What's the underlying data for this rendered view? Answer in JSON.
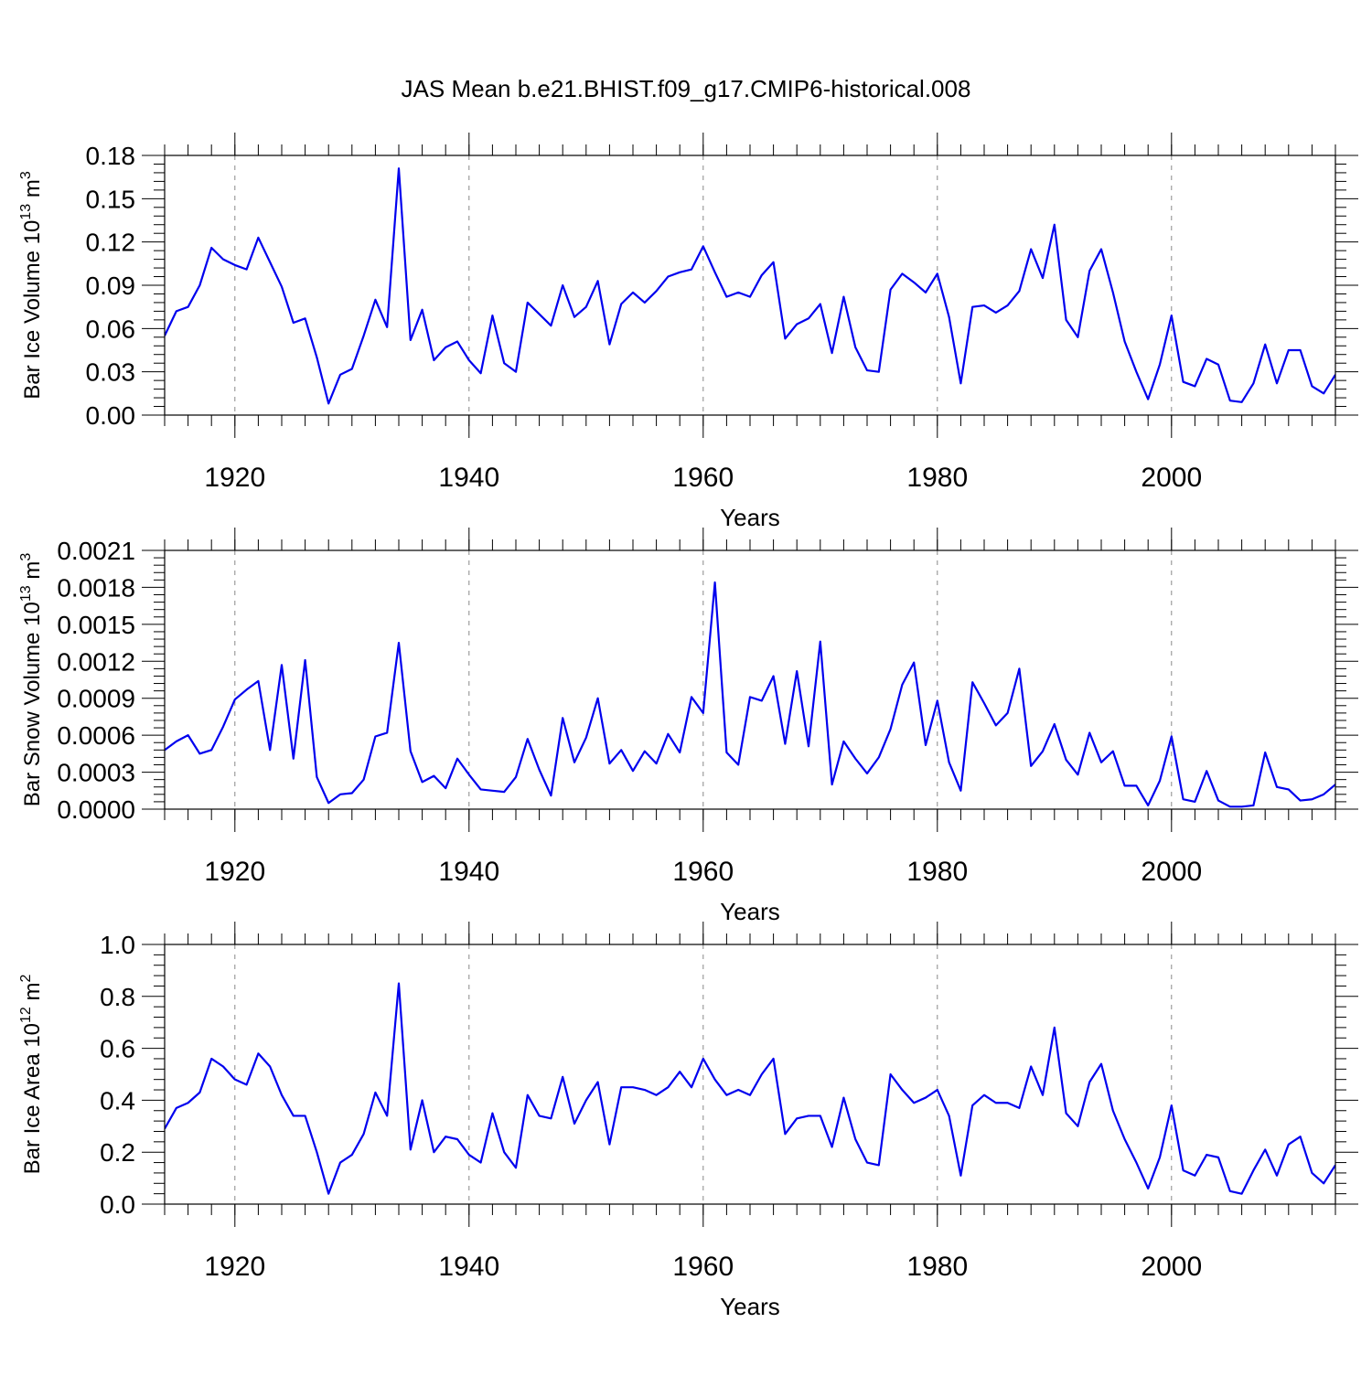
{
  "title": "JAS Mean b.e21.BHIST.f09_g17.CMIP6-historical.008",
  "colors": {
    "series": "#0000ee",
    "axes": "#000000",
    "grid": "#888888"
  },
  "chart_data": [
    {
      "type": "line",
      "name": "ice-volume",
      "ylabel": {
        "prefix": "Bar Ice Volume 10",
        "exp": "13",
        "unit": " m",
        "unit_exp": "3"
      },
      "xlabel": "Years",
      "xlim": [
        1914,
        2014
      ],
      "ylim": [
        0,
        0.18
      ],
      "yticks": [
        0,
        0.03,
        0.06,
        0.09,
        0.12,
        0.15,
        0.18
      ],
      "ytick_labels": [
        "0.00",
        "0.03",
        "0.06",
        "0.09",
        "0.12",
        "0.15",
        "0.18"
      ],
      "xticks": [
        1920,
        1940,
        1960,
        1980,
        2000
      ],
      "xtick_labels": [
        "1920",
        "1940",
        "1960",
        "1980",
        "2000"
      ],
      "grid": "vertical dashed at major x ticks",
      "series": [
        {
          "name": "Bar Ice Volume",
          "x_start": 1914,
          "values": [
            0.055,
            0.072,
            0.075,
            0.09,
            0.116,
            0.108,
            0.104,
            0.101,
            0.123,
            0.106,
            0.089,
            0.064,
            0.067,
            0.04,
            0.008,
            0.028,
            0.032,
            0.055,
            0.08,
            0.061,
            0.171,
            0.052,
            0.073,
            0.038,
            0.047,
            0.051,
            0.038,
            0.029,
            0.069,
            0.036,
            0.03,
            0.078,
            0.07,
            0.062,
            0.09,
            0.068,
            0.075,
            0.093,
            0.049,
            0.077,
            0.085,
            0.078,
            0.086,
            0.096,
            0.099,
            0.101,
            0.117,
            0.099,
            0.082,
            0.085,
            0.082,
            0.097,
            0.106,
            0.053,
            0.063,
            0.067,
            0.077,
            0.043,
            0.082,
            0.047,
            0.031,
            0.03,
            0.087,
            0.098,
            0.092,
            0.085,
            0.098,
            0.068,
            0.022,
            0.075,
            0.076,
            0.071,
            0.076,
            0.086,
            0.115,
            0.095,
            0.132,
            0.066,
            0.054,
            0.1,
            0.115,
            0.085,
            0.051,
            0.03,
            0.011,
            0.035,
            0.069,
            0.023,
            0.02,
            0.039,
            0.035,
            0.01,
            0.009,
            0.022,
            0.049,
            0.022,
            0.045,
            0.045,
            0.02,
            0.015,
            0.028
          ]
        }
      ]
    },
    {
      "type": "line",
      "name": "snow-volume",
      "ylabel": {
        "prefix": "Bar Snow Volume 10",
        "exp": "13",
        "unit": " m",
        "unit_exp": "3"
      },
      "xlabel": "Years",
      "xlim": [
        1914,
        2014
      ],
      "ylim": [
        0,
        0.0021
      ],
      "yticks": [
        0,
        0.0003,
        0.0006,
        0.0009,
        0.0012,
        0.0015,
        0.0018,
        0.0021
      ],
      "ytick_labels": [
        "0.0000",
        "0.0003",
        "0.0006",
        "0.0009",
        "0.0012",
        "0.0015",
        "0.0018",
        "0.0021"
      ],
      "xticks": [
        1920,
        1940,
        1960,
        1980,
        2000
      ],
      "xtick_labels": [
        "1920",
        "1940",
        "1960",
        "1980",
        "2000"
      ],
      "grid": "vertical dashed at major x ticks",
      "series": [
        {
          "name": "Bar Snow Volume",
          "x_start": 1914,
          "values": [
            0.00048,
            0.00055,
            0.0006,
            0.00045,
            0.00048,
            0.00067,
            0.00089,
            0.00097,
            0.00104,
            0.00048,
            0.00117,
            0.00041,
            0.00121,
            0.00026,
            5e-05,
            0.00012,
            0.00013,
            0.00024,
            0.00059,
            0.00062,
            0.00135,
            0.00047,
            0.00022,
            0.00027,
            0.00017,
            0.00041,
            0.00028,
            0.00016,
            0.00015,
            0.00014,
            0.00026,
            0.00057,
            0.00032,
            0.00011,
            0.00074,
            0.00038,
            0.00058,
            0.0009,
            0.00037,
            0.00048,
            0.00031,
            0.00047,
            0.00037,
            0.00061,
            0.00046,
            0.00091,
            0.00078,
            0.00184,
            0.00046,
            0.00036,
            0.00091,
            0.00088,
            0.00108,
            0.00053,
            0.00112,
            0.00051,
            0.00136,
            0.0002,
            0.00055,
            0.00041,
            0.00029,
            0.00042,
            0.00065,
            0.00101,
            0.00119,
            0.00052,
            0.00088,
            0.00038,
            0.00015,
            0.00103,
            0.00086,
            0.00068,
            0.00078,
            0.00114,
            0.00035,
            0.00047,
            0.00069,
            0.0004,
            0.00028,
            0.00062,
            0.00038,
            0.00047,
            0.00019,
            0.00019,
            3e-05,
            0.00023,
            0.00059,
            8e-05,
            6e-05,
            0.00031,
            7e-05,
            2e-05,
            2e-05,
            3e-05,
            0.00046,
            0.00018,
            0.00016,
            7e-05,
            8e-05,
            0.00012,
            0.0002
          ]
        }
      ]
    },
    {
      "type": "line",
      "name": "ice-area",
      "ylabel": {
        "prefix": "Bar Ice Area 10",
        "exp": "12",
        "unit": " m",
        "unit_exp": "2"
      },
      "xlabel": "Years",
      "xlim": [
        1914,
        2014
      ],
      "ylim": [
        0,
        1.0
      ],
      "yticks": [
        0,
        0.2,
        0.4,
        0.6,
        0.8,
        1.0
      ],
      "ytick_labels": [
        "0.0",
        "0.2",
        "0.4",
        "0.6",
        "0.8",
        "1.0"
      ],
      "xticks": [
        1920,
        1940,
        1960,
        1980,
        2000
      ],
      "xtick_labels": [
        "1920",
        "1940",
        "1960",
        "1980",
        "2000"
      ],
      "grid": "vertical dashed at major x ticks",
      "series": [
        {
          "name": "Bar Ice Area",
          "x_start": 1914,
          "values": [
            0.29,
            0.37,
            0.39,
            0.43,
            0.56,
            0.53,
            0.48,
            0.46,
            0.58,
            0.53,
            0.42,
            0.34,
            0.34,
            0.2,
            0.04,
            0.16,
            0.19,
            0.27,
            0.43,
            0.34,
            0.85,
            0.21,
            0.4,
            0.2,
            0.26,
            0.25,
            0.19,
            0.16,
            0.35,
            0.2,
            0.14,
            0.42,
            0.34,
            0.33,
            0.49,
            0.31,
            0.4,
            0.47,
            0.23,
            0.45,
            0.45,
            0.44,
            0.42,
            0.45,
            0.51,
            0.45,
            0.56,
            0.48,
            0.42,
            0.44,
            0.42,
            0.5,
            0.56,
            0.27,
            0.33,
            0.34,
            0.34,
            0.22,
            0.41,
            0.25,
            0.16,
            0.15,
            0.5,
            0.44,
            0.39,
            0.41,
            0.44,
            0.34,
            0.11,
            0.38,
            0.42,
            0.39,
            0.39,
            0.37,
            0.53,
            0.42,
            0.68,
            0.35,
            0.3,
            0.47,
            0.54,
            0.36,
            0.25,
            0.16,
            0.06,
            0.18,
            0.38,
            0.13,
            0.11,
            0.19,
            0.18,
            0.05,
            0.04,
            0.13,
            0.21,
            0.11,
            0.23,
            0.26,
            0.12,
            0.08,
            0.15
          ]
        }
      ]
    }
  ]
}
